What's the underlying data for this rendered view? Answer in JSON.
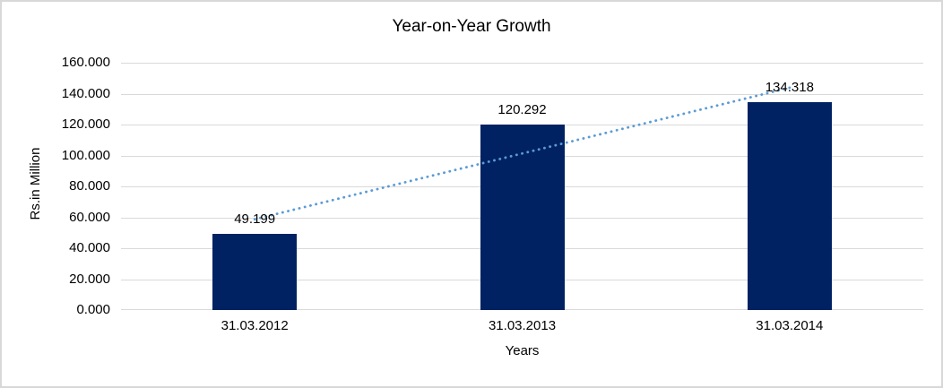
{
  "chart_data": {
    "type": "bar",
    "title": "Year-on-Year Growth",
    "xlabel": "Years",
    "ylabel": "Rs.in Million",
    "categories": [
      "31.03.2012",
      "31.03.2013",
      "31.03.2014"
    ],
    "values": [
      49.199,
      120.292,
      134.318
    ],
    "data_labels": [
      "49.199",
      "120.292",
      "134.318"
    ],
    "ylim": [
      0,
      160
    ],
    "ytick_step": 20,
    "ytick_labels": [
      "0.000",
      "20.000",
      "40.000",
      "60.000",
      "80.000",
      "100.000",
      "120.000",
      "140.000",
      "160.000"
    ],
    "grid": true,
    "legend": "none",
    "trendline": {
      "type": "linear",
      "style": "dotted",
      "color": "#5B9BD5"
    },
    "colors": {
      "bar": "#002262",
      "gridline": "#D9D9D9",
      "text": "#000000",
      "chart_border": "#D8D8D8",
      "background": "#FFFFFF"
    }
  }
}
